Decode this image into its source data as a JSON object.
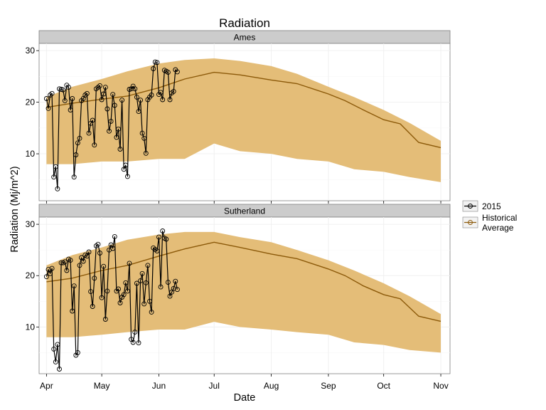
{
  "title": "Radiation",
  "x_axis_title": "Date",
  "y_axis_title": "Radiation (Mj/m^2)",
  "colors": {
    "ribbon": "#e4bd78",
    "historical_line": "#8c5a0a",
    "observed": "#000000",
    "strip": "#cccccc"
  },
  "legend": {
    "items": [
      {
        "label": "2015",
        "kind": "observed"
      },
      {
        "label": "Historical Average",
        "kind": "historical"
      }
    ]
  },
  "chart_data": [
    {
      "type": "line",
      "panel": "Ames",
      "xlabel": "Date",
      "ylabel": "Radiation (Mj/m^2)",
      "x_ticks": [
        "Apr",
        "May",
        "Jun",
        "Jul",
        "Aug",
        "Sep",
        "Oct",
        "Nov"
      ],
      "y_ticks": [
        10,
        20,
        30
      ],
      "grid": true,
      "series": [
        {
          "name": "Historical Average",
          "style": "line",
          "x": [
            "2015-04-01",
            "2015-04-15",
            "2015-05-01",
            "2015-05-15",
            "2015-06-01",
            "2015-06-15",
            "2015-07-01",
            "2015-07-15",
            "2015-08-01",
            "2015-08-15",
            "2015-09-01",
            "2015-09-10",
            "2015-09-20",
            "2015-10-01",
            "2015-10-10",
            "2015-10-20",
            "2015-11-01"
          ],
          "y": [
            19.0,
            19.8,
            20.6,
            21.2,
            22.8,
            24.5,
            25.8,
            25.3,
            24.3,
            23.6,
            21.6,
            20.3,
            18.5,
            16.6,
            15.8,
            12.2,
            11.2
          ]
        },
        {
          "name": "Historical range",
          "style": "ribbon",
          "x": [
            "2015-04-01",
            "2015-04-15",
            "2015-05-01",
            "2015-05-15",
            "2015-06-01",
            "2015-06-15",
            "2015-07-01",
            "2015-07-15",
            "2015-08-01",
            "2015-08-15",
            "2015-09-01",
            "2015-09-15",
            "2015-10-01",
            "2015-10-15",
            "2015-11-01"
          ],
          "y_low": [
            8.0,
            8.0,
            8.5,
            8.5,
            9.0,
            9.0,
            12.0,
            10.5,
            10.0,
            9.0,
            8.5,
            7.0,
            6.5,
            5.5,
            4.5
          ],
          "y_high": [
            21.0,
            23.0,
            24.5,
            26.0,
            27.5,
            28.2,
            28.5,
            28.0,
            27.0,
            25.5,
            23.0,
            21.0,
            18.5,
            16.0,
            12.5
          ]
        },
        {
          "name": "2015",
          "style": "line+points",
          "x": [
            "2015-04-01",
            "2015-04-02",
            "2015-04-03",
            "2015-04-04",
            "2015-04-05",
            "2015-04-06",
            "2015-04-07",
            "2015-04-08",
            "2015-04-09",
            "2015-04-10",
            "2015-04-11",
            "2015-04-12",
            "2015-04-13",
            "2015-04-14",
            "2015-04-15",
            "2015-04-16",
            "2015-04-17",
            "2015-04-18",
            "2015-04-19",
            "2015-04-20",
            "2015-04-21",
            "2015-04-22",
            "2015-04-23",
            "2015-04-24",
            "2015-04-25",
            "2015-04-26",
            "2015-04-27",
            "2015-04-28",
            "2015-04-29",
            "2015-04-30",
            "2015-05-01",
            "2015-05-02",
            "2015-05-03",
            "2015-05-04",
            "2015-05-05",
            "2015-05-06",
            "2015-05-07",
            "2015-05-08",
            "2015-05-09",
            "2015-05-10",
            "2015-05-11",
            "2015-05-12",
            "2015-05-13",
            "2015-05-14",
            "2015-05-15",
            "2015-05-16",
            "2015-05-17",
            "2015-05-18",
            "2015-05-19",
            "2015-05-20",
            "2015-05-21",
            "2015-05-22",
            "2015-05-23",
            "2015-05-24",
            "2015-05-25",
            "2015-05-26",
            "2015-05-27",
            "2015-05-28",
            "2015-05-29",
            "2015-05-30",
            "2015-05-31",
            "2015-06-01",
            "2015-06-02",
            "2015-06-03",
            "2015-06-04",
            "2015-06-05",
            "2015-06-06",
            "2015-06-07",
            "2015-06-08",
            "2015-06-09",
            "2015-06-10",
            "2015-06-11"
          ],
          "y": [
            20.7,
            18.8,
            21.4,
            21.7,
            5.5,
            7.5,
            3.2,
            22.6,
            22.5,
            22.4,
            20.3,
            23.3,
            22.9,
            18.5,
            20.7,
            5.5,
            9.8,
            12.1,
            13.0,
            20.3,
            20.7,
            21.4,
            21.7,
            14.0,
            15.9,
            16.5,
            11.7,
            22.6,
            22.9,
            23.2,
            20.5,
            21.6,
            22.9,
            18.7,
            14.4,
            16.3,
            21.5,
            19.4,
            13.2,
            14.8,
            10.9,
            20.4,
            7.0,
            7.8,
            5.6,
            22.5,
            22.6,
            23.1,
            22.6,
            21.0,
            18.2,
            20.4,
            14.0,
            13.0,
            10.1,
            20.5,
            21.0,
            21.4,
            26.5,
            27.8,
            27.7,
            21.5,
            21.9,
            20.5,
            26.2,
            26.0,
            25.8,
            20.5,
            21.8,
            22.1,
            26.3,
            25.9
          ]
        }
      ]
    },
    {
      "type": "line",
      "panel": "Sutherland",
      "xlabel": "Date",
      "ylabel": "Radiation (Mj/m^2)",
      "x_ticks": [
        "Apr",
        "May",
        "Jun",
        "Jul",
        "Aug",
        "Sep",
        "Oct",
        "Nov"
      ],
      "y_ticks": [
        10,
        20,
        30
      ],
      "grid": true,
      "series": [
        {
          "name": "Historical Average",
          "style": "line",
          "x": [
            "2015-04-01",
            "2015-04-15",
            "2015-05-01",
            "2015-05-15",
            "2015-06-01",
            "2015-06-15",
            "2015-07-01",
            "2015-07-15",
            "2015-08-01",
            "2015-08-15",
            "2015-09-01",
            "2015-09-10",
            "2015-09-20",
            "2015-10-01",
            "2015-10-10",
            "2015-10-20",
            "2015-11-01"
          ],
          "y": [
            18.8,
            19.5,
            21.0,
            22.0,
            23.8,
            25.2,
            26.5,
            25.5,
            24.2,
            23.3,
            21.3,
            20.0,
            18.0,
            16.3,
            15.5,
            12.1,
            11.1
          ]
        },
        {
          "name": "Historical range",
          "style": "ribbon",
          "x": [
            "2015-04-01",
            "2015-04-15",
            "2015-05-01",
            "2015-05-15",
            "2015-06-01",
            "2015-06-15",
            "2015-07-01",
            "2015-07-15",
            "2015-08-01",
            "2015-08-15",
            "2015-09-01",
            "2015-09-15",
            "2015-10-01",
            "2015-10-15",
            "2015-11-01"
          ],
          "y_low": [
            8.0,
            8.0,
            8.5,
            9.0,
            9.5,
            9.5,
            11.0,
            10.0,
            9.5,
            9.0,
            8.5,
            7.0,
            6.5,
            5.5,
            5.0
          ],
          "y_high": [
            22.0,
            24.0,
            25.5,
            27.0,
            28.0,
            28.5,
            28.5,
            27.5,
            26.5,
            25.0,
            23.0,
            21.0,
            18.5,
            16.0,
            12.5
          ]
        },
        {
          "name": "2015",
          "style": "line+points",
          "x": [
            "2015-04-01",
            "2015-04-02",
            "2015-04-03",
            "2015-04-04",
            "2015-04-05",
            "2015-04-06",
            "2015-04-07",
            "2015-04-08",
            "2015-04-09",
            "2015-04-10",
            "2015-04-11",
            "2015-04-12",
            "2015-04-13",
            "2015-04-14",
            "2015-04-15",
            "2015-04-16",
            "2015-04-17",
            "2015-04-18",
            "2015-04-19",
            "2015-04-20",
            "2015-04-21",
            "2015-04-22",
            "2015-04-23",
            "2015-04-24",
            "2015-04-25",
            "2015-04-26",
            "2015-04-27",
            "2015-04-28",
            "2015-04-29",
            "2015-04-30",
            "2015-05-01",
            "2015-05-02",
            "2015-05-03",
            "2015-05-04",
            "2015-05-05",
            "2015-05-06",
            "2015-05-07",
            "2015-05-08",
            "2015-05-09",
            "2015-05-10",
            "2015-05-11",
            "2015-05-12",
            "2015-05-13",
            "2015-05-14",
            "2015-05-15",
            "2015-05-16",
            "2015-05-17",
            "2015-05-18",
            "2015-05-19",
            "2015-05-20",
            "2015-05-21",
            "2015-05-22",
            "2015-05-23",
            "2015-05-24",
            "2015-05-25",
            "2015-05-26",
            "2015-05-27",
            "2015-05-28",
            "2015-05-29",
            "2015-05-30",
            "2015-05-31",
            "2015-06-01",
            "2015-06-02",
            "2015-06-03",
            "2015-06-04",
            "2015-06-05",
            "2015-06-06",
            "2015-06-07",
            "2015-06-08",
            "2015-06-09",
            "2015-06-10",
            "2015-06-11"
          ],
          "y": [
            19.8,
            21.2,
            20.4,
            21.4,
            5.7,
            3.2,
            6.6,
            1.8,
            22.5,
            22.5,
            22.7,
            21.0,
            23.2,
            23.0,
            13.1,
            18.0,
            4.5,
            5.0,
            22.0,
            23.5,
            22.8,
            24.0,
            23.8,
            24.6,
            16.9,
            14.0,
            19.5,
            25.8,
            26.1,
            24.4,
            15.7,
            21.8,
            11.5,
            17.0,
            25.0,
            26.0,
            25.3,
            27.6,
            17.0,
            17.4,
            14.7,
            15.8,
            16.3,
            18.6,
            17.0,
            22.4,
            7.6,
            7.0,
            9.0,
            18.5,
            6.9,
            19.0,
            20.4,
            14.5,
            18.6,
            22.0,
            15.0,
            12.9,
            25.4,
            25.1,
            24.8,
            27.5,
            17.8,
            28.7,
            27.3,
            27.1,
            18.7,
            16.0,
            16.8,
            17.5,
            18.9,
            17.3
          ]
        }
      ]
    }
  ]
}
